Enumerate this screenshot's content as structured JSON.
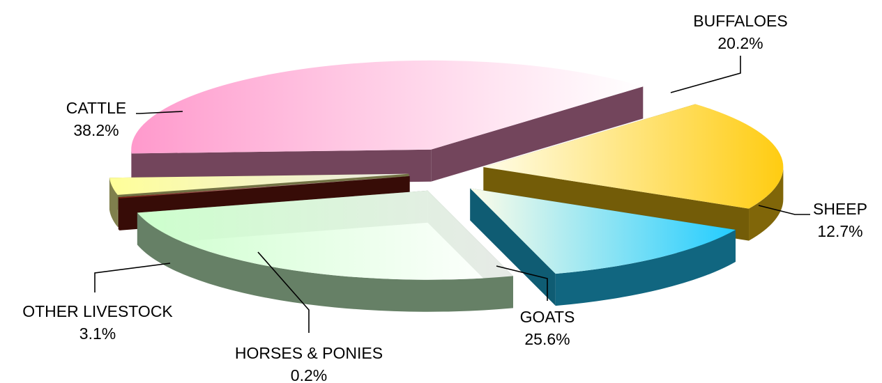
{
  "chart_data": {
    "type": "pie",
    "title": "",
    "categories": [
      "BUFFALOES",
      "SHEEP",
      "GOATS",
      "HORSES & PONIES",
      "OTHER LIVESTOCK",
      "CATTLE"
    ],
    "values": [
      20.2,
      12.7,
      25.6,
      0.2,
      3.1,
      38.2
    ],
    "value_labels": [
      "20.2%",
      "12.7%",
      "25.6%",
      "0.2%",
      "3.1%",
      "38.2%"
    ],
    "legend": "none",
    "style": "3d-exploded",
    "colors": {
      "BUFFALOES": "#ffcc11",
      "SHEEP": "#22ccff",
      "GOATS": "#ccffcc",
      "HORSES & PONIES": "#7a1a10",
      "OTHER LIVESTOCK": "#ffff99",
      "CATTLE": "#ff99cc"
    }
  }
}
